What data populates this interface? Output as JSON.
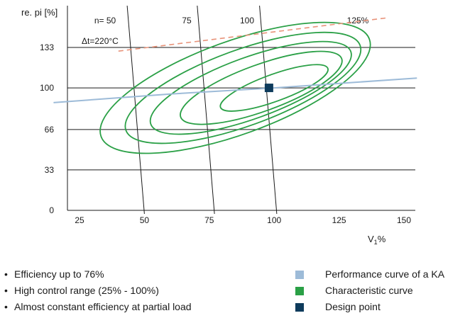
{
  "colors": {
    "performance": "#9dbbd8",
    "characteristic": "#2aa046",
    "design": "#0e3b5c",
    "temp_line": "#e8937a",
    "grid": "#1a1a1a"
  },
  "chart_data": {
    "type": "line",
    "ylabel": "re. pi [%]",
    "xlabel": "V",
    "xlabel_sub": "1",
    "xlabel_unit": "%",
    "x_ticks": [
      "25",
      "50",
      "75",
      "100",
      "125",
      "150"
    ],
    "y_ticks": [
      "0",
      "33",
      "66",
      "100",
      "133"
    ],
    "xlim": [
      15,
      155
    ],
    "ylim": [
      0,
      165
    ],
    "grid": "horizontal",
    "speed_lines": [
      {
        "label": "n= 50",
        "bottom_x": 50,
        "top_x": 45
      },
      {
        "label": "75",
        "bottom_x": 77,
        "top_x": 72
      },
      {
        "label": "100",
        "bottom_x": 101,
        "top_x": 96
      },
      {
        "label": "125%",
        "bottom_x": null,
        "top_x": null
      }
    ],
    "performance_curve": {
      "x": [
        15,
        60,
        100,
        155
      ],
      "y": [
        88,
        95,
        100,
        108
      ]
    },
    "temperature_line": {
      "label": "Δt=220°C",
      "x": [
        40,
        155
      ],
      "y": [
        130,
        155
      ]
    },
    "design_point": {
      "x": 98,
      "y": 100
    },
    "characteristic_curves": [
      {
        "cx": 85,
        "cy": 100,
        "rx": 55,
        "ry": 38,
        "rotation": -20
      },
      {
        "cx": 88,
        "cy": 100,
        "rx": 48,
        "ry": 31,
        "rotation": -20
      },
      {
        "cx": 91,
        "cy": 100,
        "rx": 41,
        "ry": 25,
        "rotation": -20
      },
      {
        "cx": 95,
        "cy": 100,
        "rx": 33,
        "ry": 19,
        "rotation": -20
      },
      {
        "cx": 100,
        "cy": 100,
        "rx": 22,
        "ry": 11,
        "rotation": -20
      }
    ]
  },
  "bullets": [
    "Efficiency up to 76%",
    "High control range (25% - 100%)",
    "Almost constant efficiency at partial load"
  ],
  "legend": [
    {
      "label": "Performance curve of a KA",
      "color": "#9dbbd8"
    },
    {
      "label": "Characteristic curve",
      "color": "#2aa046"
    },
    {
      "label": "Design point",
      "color": "#0e3b5c"
    }
  ]
}
